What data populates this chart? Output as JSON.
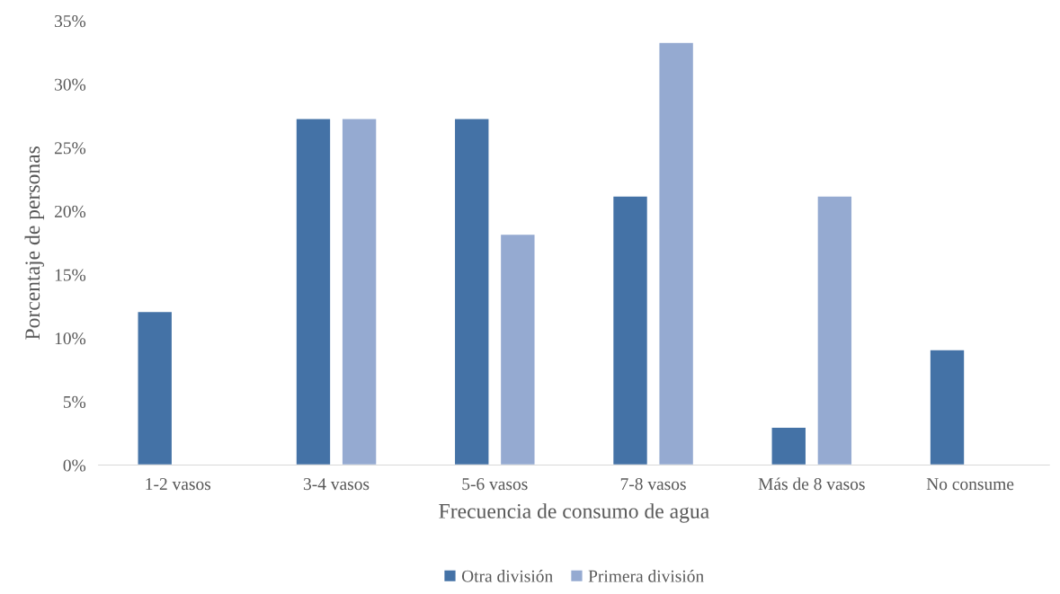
{
  "chart_data": {
    "type": "bar",
    "xlabel": "Frecuencia de consumo de agua",
    "ylabel": "Porcentaje de personas",
    "categories": [
      "1-2 vasos",
      "3-4 vasos",
      "5-6 vasos",
      "7-8 vasos",
      "Más de 8 vasos",
      "No consume"
    ],
    "series": [
      {
        "name": "Otra división",
        "color": "#4472a6",
        "values": [
          12.1,
          27.3,
          27.3,
          21.2,
          3.0,
          9.1
        ]
      },
      {
        "name": "Primera división",
        "color": "#95aad1",
        "values": [
          null,
          27.3,
          18.2,
          33.3,
          21.2,
          null
        ]
      }
    ],
    "ylim": [
      0,
      35
    ],
    "yticks": [
      {
        "value": 0,
        "label": "0%"
      },
      {
        "value": 5,
        "label": "5%"
      },
      {
        "value": 10,
        "label": "10%"
      },
      {
        "value": 15,
        "label": "15%"
      },
      {
        "value": 20,
        "label": "20%"
      },
      {
        "value": 25,
        "label": "25%"
      },
      {
        "value": 30,
        "label": "30%"
      },
      {
        "value": 35,
        "label": "35%"
      }
    ],
    "grid": false,
    "legend": "bottom"
  }
}
